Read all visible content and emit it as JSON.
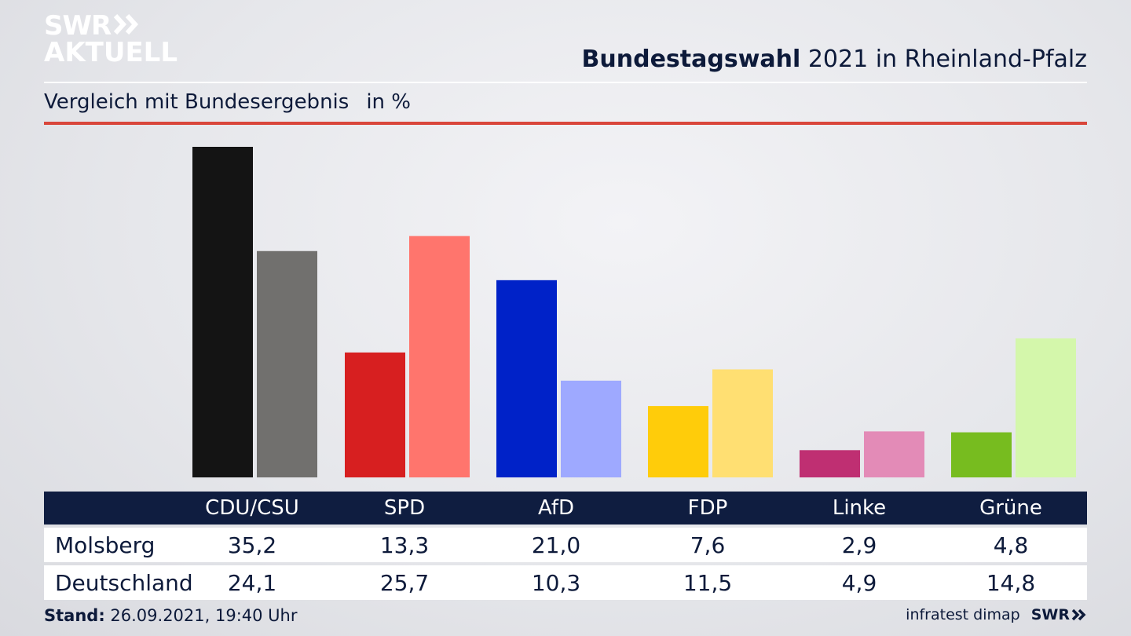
{
  "brand": {
    "line1": "SWR",
    "line2": "AKTUELL",
    "color": "#ffffff"
  },
  "header": {
    "title_bold": "Bundestagswahl",
    "title_rest": " 2021 in Rheinland-Pfalz"
  },
  "subtitle": {
    "text": "Vergleich mit Bundesergebnis",
    "unit": "in %"
  },
  "colors": {
    "accent_red": "#d9463b",
    "table_header": "#0f1d40"
  },
  "chart_data": {
    "type": "bar",
    "categories": [
      "CDU/CSU",
      "SPD",
      "AfD",
      "FDP",
      "Linke",
      "Grüne"
    ],
    "series": [
      {
        "name": "Molsberg",
        "values": [
          35.2,
          13.3,
          21.0,
          7.6,
          2.9,
          4.8
        ],
        "colors": [
          "#141414",
          "#d71f20",
          "#0022c8",
          "#ffcc0a",
          "#bf2f72",
          "#77bc1f"
        ]
      },
      {
        "name": "Deutschland",
        "values": [
          24.1,
          25.7,
          10.3,
          11.5,
          4.9,
          14.8
        ],
        "colors": [
          "#71706e",
          "#ff756d",
          "#9ea9ff",
          "#ffdf72",
          "#e38bb7",
          "#d4f7ab"
        ]
      }
    ],
    "ylim": [
      0,
      35.2
    ],
    "grid": false
  },
  "table": {
    "rows": [
      {
        "label": "Molsberg",
        "values": [
          "35,2",
          "13,3",
          "21,0",
          "7,6",
          "2,9",
          "4,8"
        ]
      },
      {
        "label": "Deutschland",
        "values": [
          "24,1",
          "25,7",
          "10,3",
          "11,5",
          "4,9",
          "14,8"
        ]
      }
    ]
  },
  "footer": {
    "stand_label": "Stand:",
    "stand_value": " 26.09.2021, 19:40 Uhr",
    "source": "infratest dimap",
    "swr": "SWR"
  }
}
